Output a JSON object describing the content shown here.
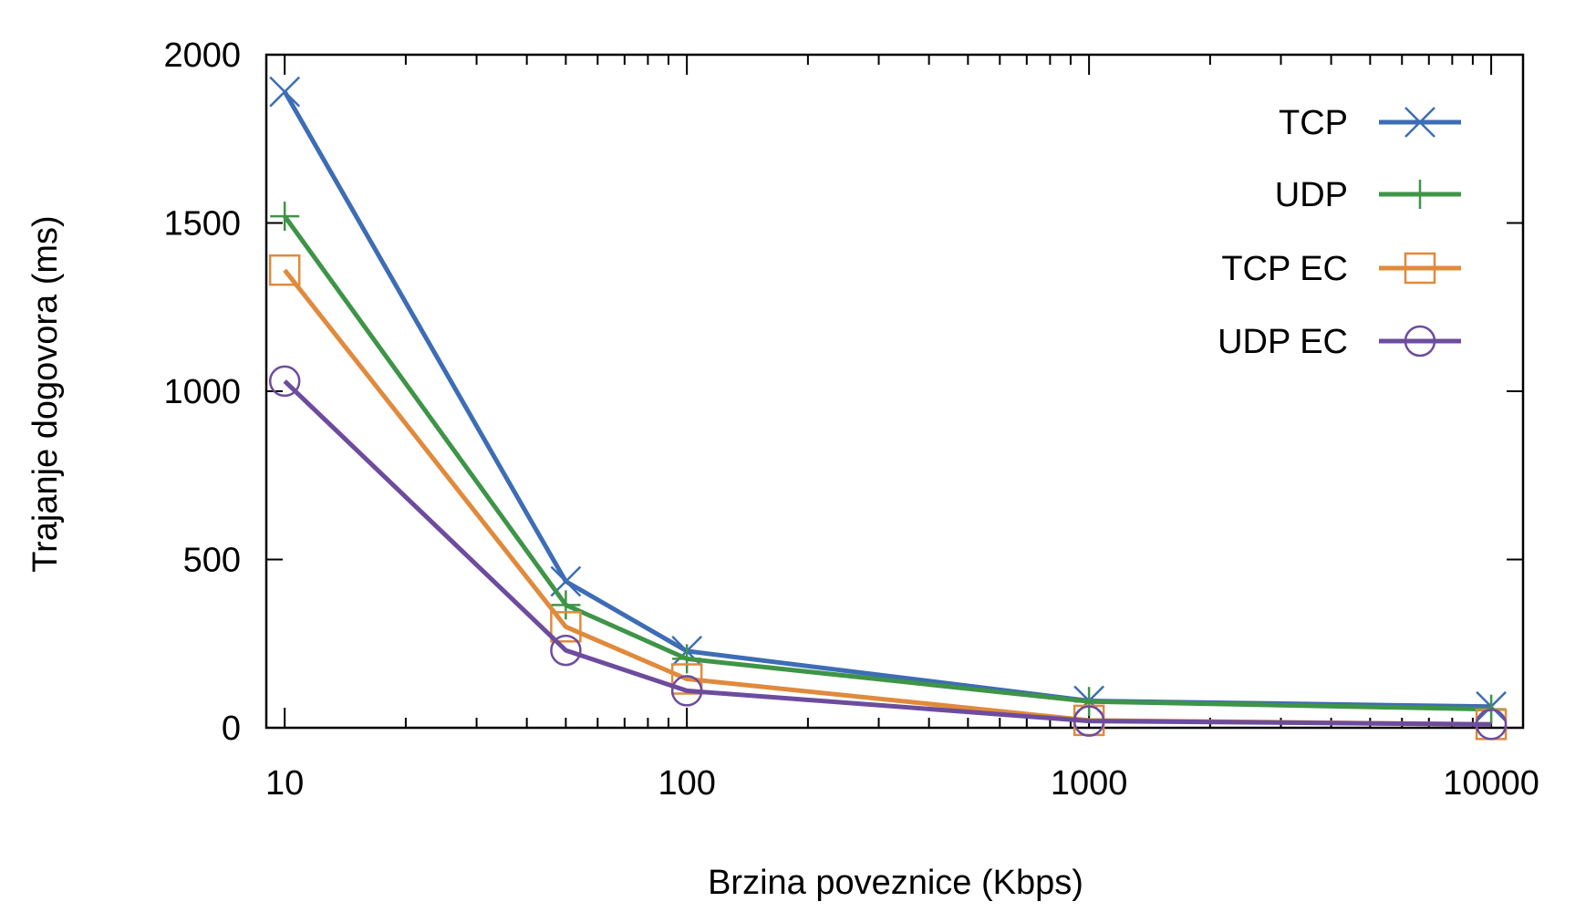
{
  "chart_data": {
    "type": "line",
    "title": "",
    "xlabel": "Brzina poveznice (Kbps)",
    "ylabel": "Trajanje dogovora (ms)",
    "x_scale": "log",
    "xlim": [
      9,
      12000
    ],
    "ylim": [
      0,
      2000
    ],
    "x_ticks": [
      10,
      100,
      1000,
      10000
    ],
    "x_tick_labels": [
      "10",
      "100",
      "1000",
      "10000"
    ],
    "y_ticks": [
      0,
      500,
      1000,
      1500,
      2000
    ],
    "y_tick_labels": [
      "0",
      "500",
      "1000",
      "1500",
      "2000"
    ],
    "grid": false,
    "legend_position": "top-right",
    "x": [
      10,
      50,
      100,
      1000,
      10000
    ],
    "series": [
      {
        "name": "TCP",
        "color": "#3d6db5",
        "marker": "x",
        "values": [
          1890,
          435,
          228,
          80,
          63
        ]
      },
      {
        "name": "UDP",
        "color": "#3e9447",
        "marker": "plus",
        "values": [
          1520,
          365,
          205,
          78,
          55
        ]
      },
      {
        "name": "TCP EC",
        "color": "#e08a3c",
        "marker": "square",
        "values": [
          1360,
          300,
          145,
          22,
          10
        ]
      },
      {
        "name": "UDP EC",
        "color": "#6d4c9e",
        "marker": "circle",
        "values": [
          1030,
          230,
          110,
          20,
          10
        ]
      }
    ]
  }
}
